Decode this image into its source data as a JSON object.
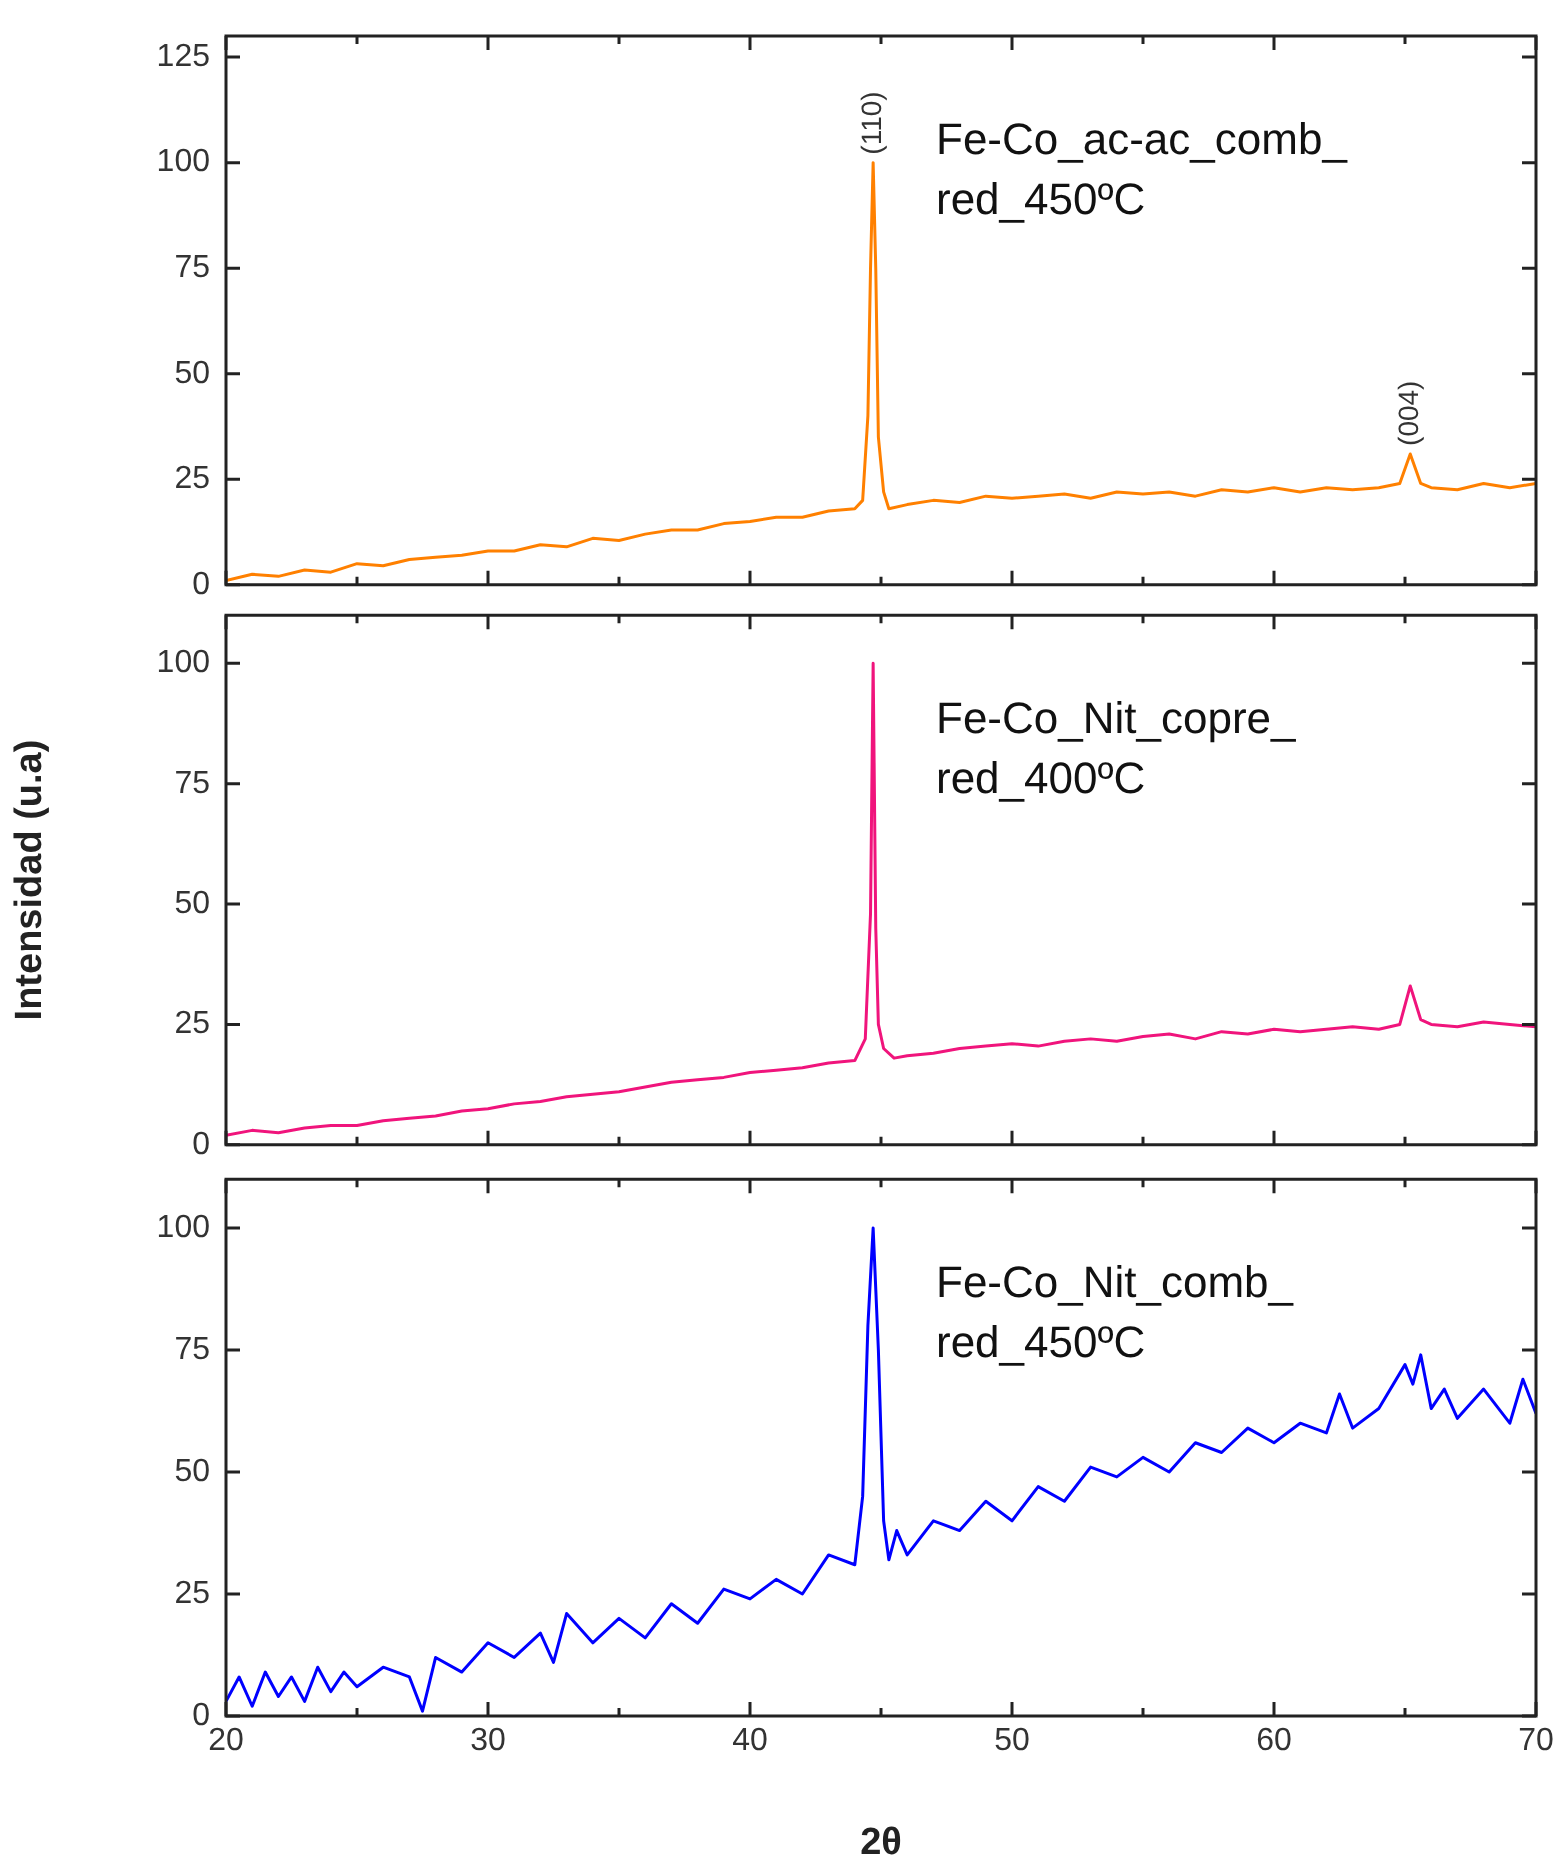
{
  "chart_data": [
    {
      "type": "line",
      "xlim": [
        20,
        70
      ],
      "xticks": [
        20,
        {
          "value": 25,
          "label": null
        },
        30,
        {
          "value": 35,
          "label": null
        },
        40,
        {
          "value": 45,
          "label": null
        },
        50,
        {
          "value": 55,
          "label": null
        },
        60,
        {
          "value": 65,
          "label": null
        },
        70
      ],
      "ylim": [
        0,
        130
      ],
      "yticks": [
        0,
        25,
        50,
        75,
        100,
        125
      ],
      "tick_labels": "y",
      "grid": false,
      "legend": "top right",
      "annotations": [
        {
          "text": "(110)",
          "x": 44.7,
          "y": 100
        },
        {
          "text": "(004)",
          "x": 65.2,
          "y": 31
        }
      ],
      "series": [
        {
          "name": "Fe-Co_ac-ac_comb_red_450ºC",
          "color": "#ff8000",
          "x": [
            20,
            21,
            22,
            23,
            24,
            25,
            26,
            27,
            28,
            29,
            30,
            31,
            32,
            33,
            34,
            35,
            36,
            37,
            38,
            39,
            40,
            41,
            42,
            43,
            44,
            44.3,
            44.5,
            44.6,
            44.7,
            44.8,
            44.9,
            45.1,
            45.3,
            46,
            47,
            48,
            49,
            50,
            51,
            52,
            53,
            54,
            55,
            56,
            57,
            58,
            59,
            60,
            61,
            62,
            63,
            64,
            64.8,
            65.2,
            65.6,
            66,
            67,
            68,
            69,
            70
          ],
          "values": [
            1,
            2.5,
            2,
            3.5,
            3,
            5,
            4.5,
            6,
            6.5,
            7,
            8,
            8,
            9.5,
            9,
            11,
            10.5,
            12,
            13,
            13,
            14.5,
            15,
            16,
            16,
            17.5,
            18,
            20,
            40,
            75,
            100,
            75,
            35,
            22,
            18,
            19,
            20,
            19.5,
            21,
            20.5,
            21,
            21.5,
            20.5,
            22,
            21.5,
            22,
            21,
            22.5,
            22,
            23,
            22,
            23,
            22.5,
            23,
            24,
            31,
            24,
            23,
            22.5,
            24,
            23,
            24
          ]
        }
      ]
    },
    {
      "type": "line",
      "xlim": [
        20,
        70
      ],
      "xticks": [
        20,
        {
          "value": 25,
          "label": null
        },
        30,
        {
          "value": 35,
          "label": null
        },
        40,
        {
          "value": 45,
          "label": null
        },
        50,
        {
          "value": 55,
          "label": null
        },
        60,
        {
          "value": 65,
          "label": null
        },
        70
      ],
      "ylim": [
        0,
        110
      ],
      "yticks": [
        0,
        25,
        50,
        75,
        100
      ],
      "tick_labels": "y",
      "grid": false,
      "legend": "top right",
      "ylabel": "Intensidad (u.a)",
      "series": [
        {
          "name": "Fe-Co_Nit_copre_red_400ºC",
          "color": "#f0147c",
          "x": [
            20,
            21,
            22,
            23,
            24,
            25,
            26,
            27,
            28,
            29,
            30,
            31,
            32,
            33,
            34,
            35,
            36,
            37,
            38,
            39,
            40,
            41,
            42,
            43,
            44,
            44.4,
            44.6,
            44.7,
            44.8,
            44.9,
            45.1,
            45.5,
            46,
            47,
            48,
            49,
            50,
            51,
            52,
            53,
            54,
            55,
            56,
            57,
            58,
            59,
            60,
            61,
            62,
            63,
            64,
            64.8,
            65.2,
            65.6,
            66,
            67,
            68,
            69,
            70
          ],
          "values": [
            2,
            3,
            2.5,
            3.5,
            4,
            4,
            5,
            5.5,
            6,
            7,
            7.5,
            8.5,
            9,
            10,
            10.5,
            11,
            12,
            13,
            13.5,
            14,
            15,
            15.5,
            16,
            17,
            17.5,
            22,
            48,
            100,
            45,
            25,
            20,
            18,
            18.5,
            19,
            20,
            20.5,
            21,
            20.5,
            21.5,
            22,
            21.5,
            22.5,
            23,
            22,
            23.5,
            23,
            24,
            23.5,
            24,
            24.5,
            24,
            25,
            33,
            26,
            25,
            24.5,
            25.5,
            25,
            24.5
          ]
        }
      ]
    },
    {
      "type": "line",
      "xlim": [
        20,
        70
      ],
      "xticks": [
        20,
        {
          "value": 25,
          "label": null
        },
        30,
        {
          "value": 35,
          "label": null
        },
        40,
        {
          "value": 45,
          "label": null
        },
        50,
        {
          "value": 55,
          "label": null
        },
        60,
        {
          "value": 65,
          "label": null
        },
        70
      ],
      "ylim": [
        0,
        110
      ],
      "yticks": [
        0,
        25,
        50,
        75,
        100
      ],
      "grid": false,
      "legend": "top right",
      "xlabel": "2θ",
      "series": [
        {
          "name": "Fe-Co_Nit_comb_red_450ºC",
          "color": "#0000ff",
          "x": [
            20,
            20.5,
            21,
            21.5,
            22,
            22.5,
            23,
            23.5,
            24,
            24.5,
            25,
            26,
            27,
            27.5,
            28,
            29,
            30,
            31,
            32,
            32.5,
            33,
            34,
            35,
            36,
            37,
            38,
            39,
            40,
            41,
            42,
            43,
            44,
            44.3,
            44.5,
            44.7,
            44.9,
            45.1,
            45.3,
            45.6,
            46,
            47,
            48,
            49,
            50,
            51,
            52,
            53,
            54,
            55,
            56,
            57,
            58,
            59,
            60,
            61,
            62,
            62.5,
            63,
            64,
            65,
            65.3,
            65.6,
            66,
            66.5,
            67,
            68,
            69,
            69.5,
            70
          ],
          "values": [
            3,
            8,
            2,
            9,
            4,
            8,
            3,
            10,
            5,
            9,
            6,
            10,
            8,
            1,
            12,
            9,
            15,
            12,
            17,
            11,
            21,
            15,
            20,
            16,
            23,
            19,
            26,
            24,
            28,
            25,
            33,
            31,
            45,
            80,
            100,
            75,
            40,
            32,
            38,
            33,
            40,
            38,
            44,
            40,
            47,
            44,
            51,
            49,
            53,
            50,
            56,
            54,
            59,
            56,
            60,
            58,
            66,
            59,
            63,
            72,
            68,
            74,
            63,
            67,
            61,
            67,
            60,
            69,
            62
          ]
        }
      ]
    }
  ]
}
